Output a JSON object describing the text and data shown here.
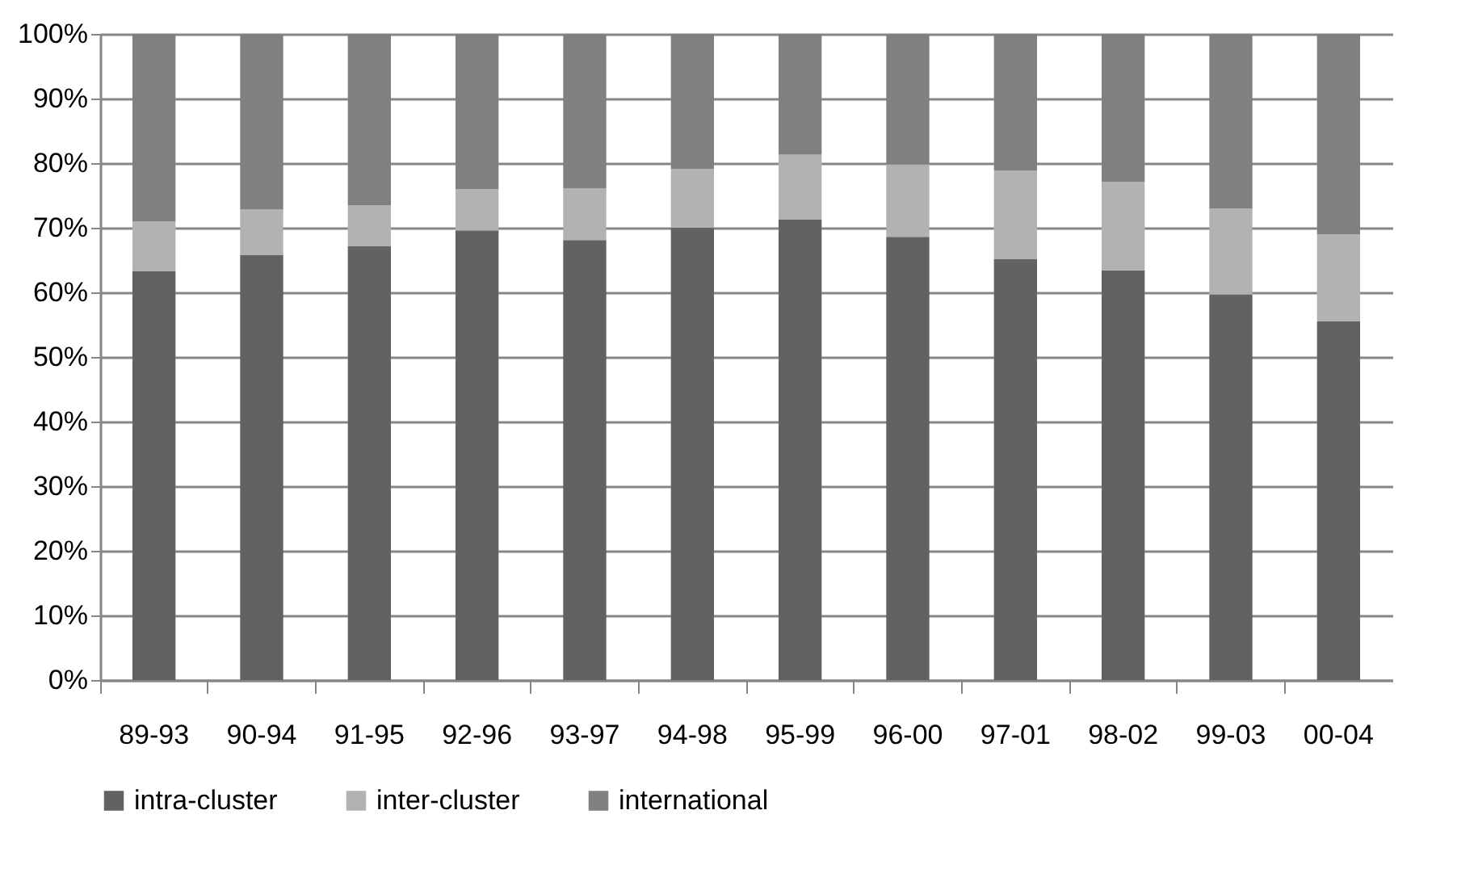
{
  "chart_data": {
    "type": "bar",
    "stacked": true,
    "categories": [
      "89-93",
      "90-94",
      "91-95",
      "92-96",
      "93-97",
      "94-98",
      "95-99",
      "96-00",
      "97-01",
      "98-02",
      "99-03",
      "00-04"
    ],
    "series": [
      {
        "name": "intra-cluster",
        "color": "#626262",
        "values": [
          63.3,
          65.8,
          67.2,
          69.6,
          68.1,
          70.0,
          71.3,
          68.6,
          65.2,
          63.4,
          59.7,
          55.5
        ]
      },
      {
        "name": "inter-cluster",
        "color": "#b2b2b2",
        "values": [
          7.7,
          7.0,
          6.3,
          6.4,
          8.0,
          9.1,
          10.0,
          11.2,
          13.6,
          13.7,
          13.3,
          13.5
        ]
      },
      {
        "name": "international",
        "color": "#808080",
        "values": [
          29.0,
          27.2,
          26.5,
          24.0,
          23.9,
          20.9,
          18.7,
          20.2,
          21.2,
          22.9,
          27.0,
          31.0
        ]
      }
    ],
    "ylim": [
      0,
      100
    ],
    "yticks": [
      {
        "value": 0,
        "label": "0%"
      },
      {
        "value": 10,
        "label": "10%"
      },
      {
        "value": 20,
        "label": "20%"
      },
      {
        "value": 30,
        "label": "30%"
      },
      {
        "value": 40,
        "label": "40%"
      },
      {
        "value": 50,
        "label": "50%"
      },
      {
        "value": 60,
        "label": "60%"
      },
      {
        "value": 70,
        "label": "70%"
      },
      {
        "value": 80,
        "label": "80%"
      },
      {
        "value": 90,
        "label": "90%"
      },
      {
        "value": 100,
        "label": "100%"
      }
    ],
    "grid": "y",
    "legend": "bottom"
  }
}
